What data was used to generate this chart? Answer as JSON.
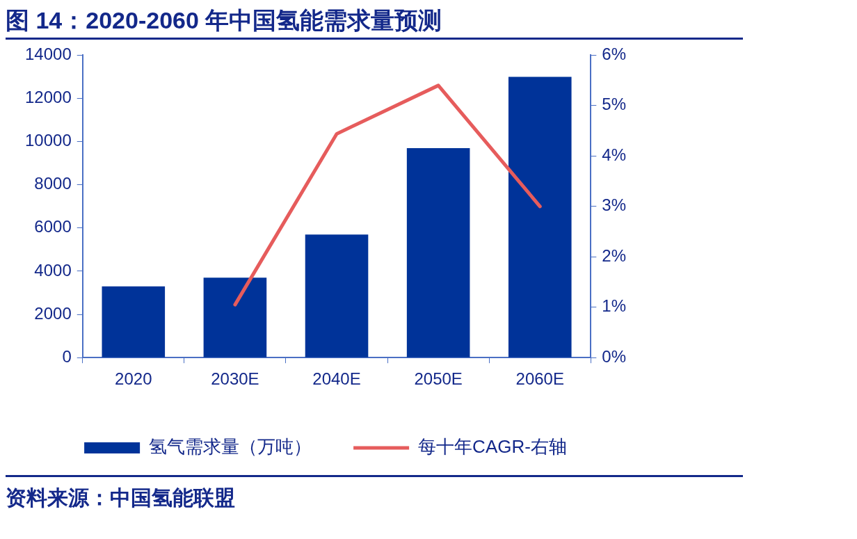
{
  "chart_data": {
    "type": "bar",
    "title": "图 14：2020-2060 年中国氢能需求量预测",
    "categories": [
      "2020",
      "2030E",
      "2040E",
      "2050E",
      "2060E"
    ],
    "series": [
      {
        "name": "氢气需求量（万吨）",
        "color": "#003399",
        "values": [
          3300,
          3700,
          5700,
          9700,
          13000
        ]
      },
      {
        "name": "每十年CAGR-右轴",
        "type": "line",
        "color": "#e65c5c",
        "axis": "y2",
        "marker": "none",
        "values": [
          null,
          1.05,
          4.44,
          5.4,
          3.0
        ]
      }
    ],
    "ylim": [
      0,
      14000
    ],
    "yticks": [
      0,
      2000,
      4000,
      6000,
      8000,
      10000,
      12000,
      14000
    ],
    "y2lim": [
      0,
      6
    ],
    "y2ticks": [
      {
        "value": 0,
        "label": "0%"
      },
      {
        "value": 1,
        "label": "1%"
      },
      {
        "value": 2,
        "label": "2%"
      },
      {
        "value": 3,
        "label": "3%"
      },
      {
        "value": 4,
        "label": "4%"
      },
      {
        "value": 5,
        "label": "5%"
      },
      {
        "value": 6,
        "label": "6%"
      }
    ],
    "legend": "bottom",
    "annotations": [
      "资料来源：中国氢能联盟"
    ]
  }
}
